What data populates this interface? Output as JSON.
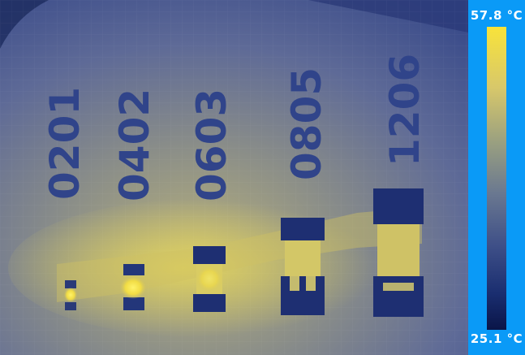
{
  "thermal_image": {
    "component_labels": [
      "0201",
      "0402",
      "0603",
      "0805",
      "1206"
    ]
  },
  "temperature_scale": {
    "max_label": "57.8 °C",
    "min_label": "25.1 °C",
    "max_value_c": 57.8,
    "min_value_c": 25.1,
    "palette": [
      "#f8e33a",
      "#d8c86a",
      "#9aa080",
      "#6a7890",
      "#3f5088",
      "#1a2e70",
      "#0a1548"
    ]
  },
  "colors": {
    "sidebar_bg": "#0a9af7",
    "label_text": "#ffffff",
    "board_bg": "#5a6a98",
    "silkscreen_text": "#2e4284",
    "hot_trace": "#c8be6a"
  }
}
